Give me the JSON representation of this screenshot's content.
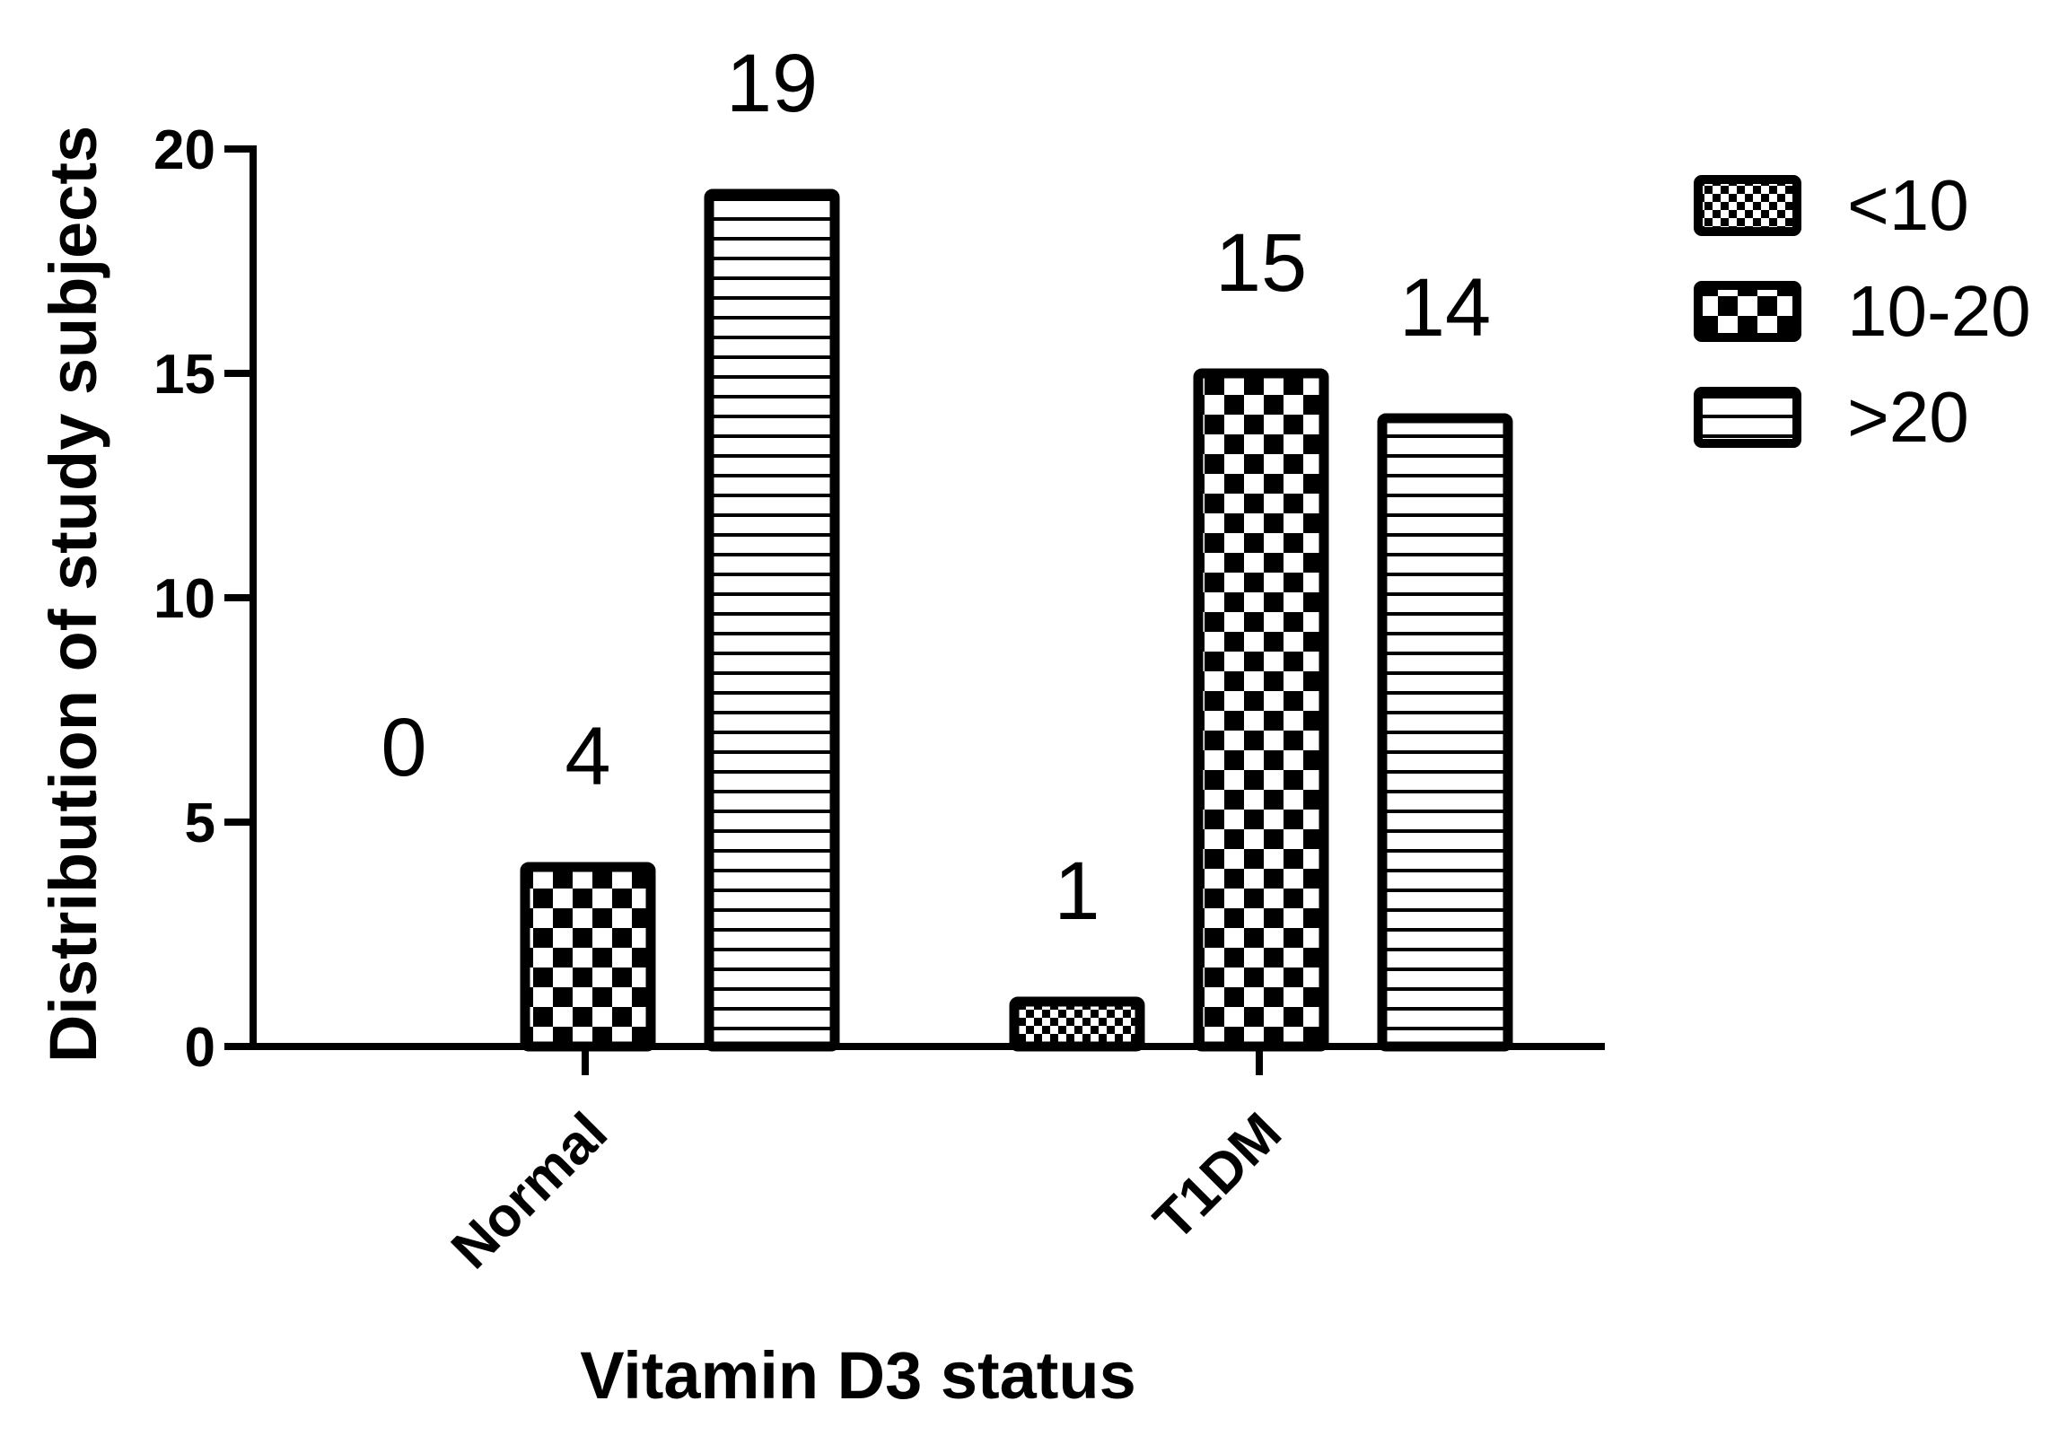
{
  "chart_data": {
    "type": "bar",
    "title": "",
    "xlabel": "Vitamin D3 status",
    "ylabel": "Distribution of study subjects",
    "categories": [
      "Normal",
      "T1DM"
    ],
    "series": [
      {
        "name": "<10",
        "values": [
          0,
          1
        ],
        "pattern": "small-checker"
      },
      {
        "name": "10-20",
        "values": [
          4,
          15
        ],
        "pattern": "large-checker"
      },
      {
        "name": ">20",
        "values": [
          19,
          14
        ],
        "pattern": "horizontal-stripes"
      }
    ],
    "data_labels": [
      [
        "0",
        "1"
      ],
      [
        "4",
        "15"
      ],
      [
        "19",
        "14"
      ]
    ],
    "ylim": [
      0,
      20
    ],
    "yticks": [
      0,
      5,
      10,
      15,
      20
    ],
    "grid": false,
    "legend_position": "top-right",
    "colors": {
      "ink": "#000000",
      "background": "#ffffff"
    }
  }
}
